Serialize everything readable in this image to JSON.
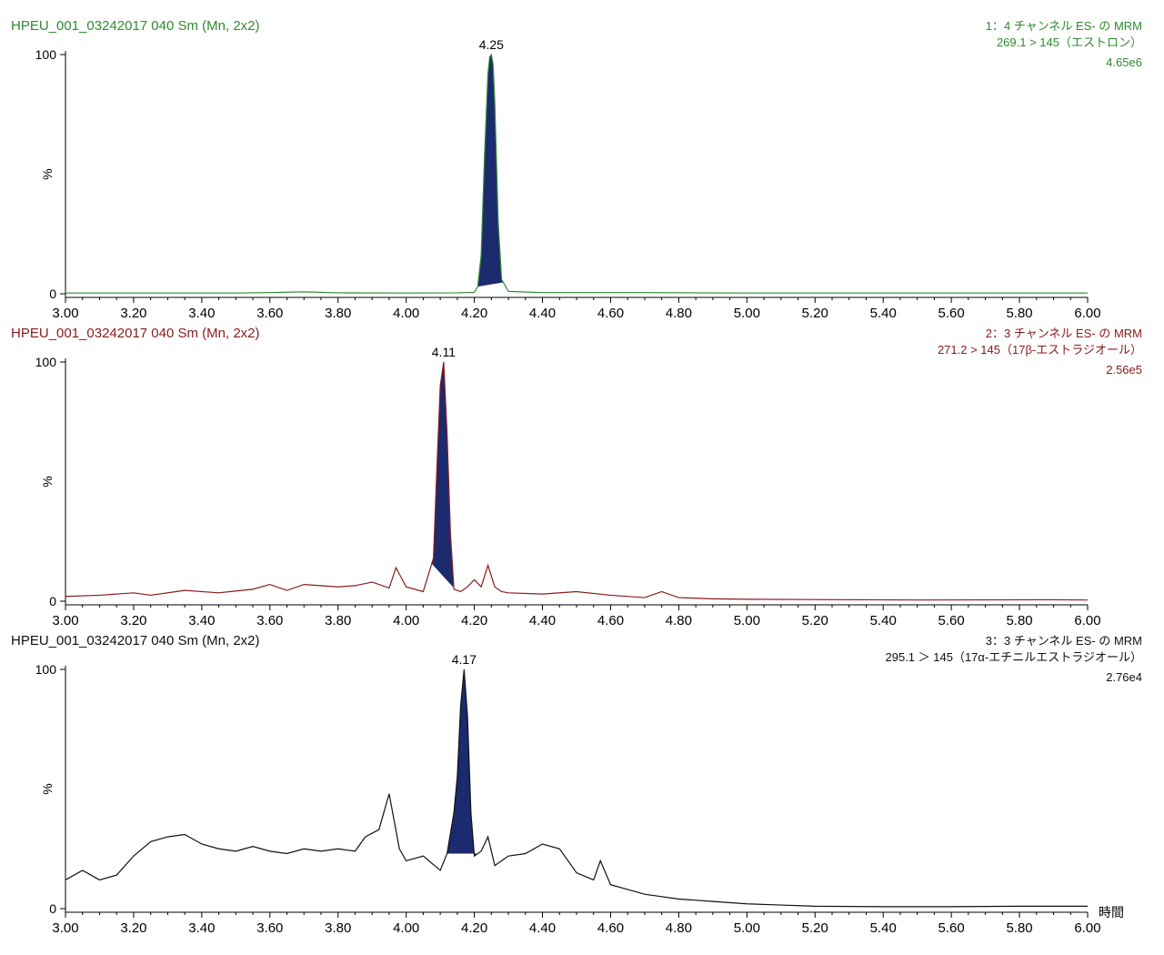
{
  "x_unit_label": "時間",
  "chart_data": [
    {
      "type": "line",
      "title": "HPEU_001_03242017 040 Sm (Mn, 2x2)",
      "channel": "1：4 チャンネル ES- の MRM",
      "transition": "269.1 > 145（エストロン）",
      "intensity": "4.65e6",
      "ylabel": "%",
      "color": "#2e8b2e",
      "fill_color": "#1c2a6e",
      "xlim": [
        3.0,
        6.0
      ],
      "ylim": [
        0,
        100
      ],
      "y_ticks": [
        "0",
        "100"
      ],
      "x_ticks": [
        "3.00",
        "3.20",
        "3.40",
        "3.60",
        "3.80",
        "4.00",
        "4.20",
        "4.40",
        "4.60",
        "4.80",
        "5.00",
        "5.20",
        "5.40",
        "5.60",
        "5.80",
        "6.00"
      ],
      "peak_label": "4.25",
      "peak": {
        "rt": 4.25,
        "start": 4.21,
        "end": 4.285
      },
      "series": [
        {
          "x": [
            3.0,
            3.5,
            3.6,
            3.7,
            3.8,
            4.0,
            4.15,
            4.2,
            4.21,
            4.22,
            4.23,
            4.24,
            4.245,
            4.25,
            4.255,
            4.26,
            4.27,
            4.28,
            4.3,
            4.4,
            4.7,
            5.0,
            6.0
          ],
          "values": [
            0.3,
            0.3,
            0.5,
            0.8,
            0.4,
            0.3,
            0.4,
            0.6,
            3,
            16,
            58,
            92,
            99,
            100,
            96,
            80,
            30,
            6,
            1,
            0.5,
            0.5,
            0.3,
            0.3
          ]
        }
      ]
    },
    {
      "type": "line",
      "title": "HPEU_001_03242017 040 Sm (Mn, 2x2)",
      "channel": "2：3 チャンネル ES- の MRM",
      "transition": "271.2 > 145（17β-エストラジオール）",
      "intensity": "2.56e5",
      "ylabel": "%",
      "color": "#8b1a1a",
      "fill_color": "#1c2a6e",
      "xlim": [
        3.0,
        6.0
      ],
      "ylim": [
        0,
        100
      ],
      "y_ticks": [
        "0",
        "100"
      ],
      "x_ticks": [
        "3.00",
        "3.20",
        "3.40",
        "3.60",
        "3.80",
        "4.00",
        "4.20",
        "4.40",
        "4.60",
        "4.80",
        "5.00",
        "5.20",
        "5.40",
        "5.60",
        "5.80",
        "6.00"
      ],
      "peak_label": "4.11",
      "peak": {
        "rt": 4.11,
        "start": 4.075,
        "end": 4.145
      },
      "series": [
        {
          "x": [
            3.0,
            3.1,
            3.2,
            3.25,
            3.35,
            3.45,
            3.55,
            3.6,
            3.65,
            3.7,
            3.8,
            3.85,
            3.9,
            3.95,
            3.97,
            4.0,
            4.05,
            4.08,
            4.09,
            4.1,
            4.11,
            4.12,
            4.13,
            4.14,
            4.16,
            4.18,
            4.2,
            4.22,
            4.24,
            4.26,
            4.28,
            4.3,
            4.4,
            4.5,
            4.6,
            4.7,
            4.75,
            4.8,
            4.9,
            5.0,
            5.5,
            5.9,
            6.0
          ],
          "values": [
            2,
            2.5,
            3.5,
            2.5,
            4.5,
            3.5,
            5,
            7,
            4.5,
            7,
            6,
            6.5,
            8,
            5.5,
            14,
            6,
            4,
            18,
            55,
            90,
            100,
            70,
            28,
            5,
            4,
            6,
            9,
            6,
            15,
            6,
            4,
            3.5,
            3,
            4,
            2.5,
            1.5,
            4,
            1.5,
            1,
            0.8,
            0.5,
            0.6,
            0.5
          ]
        }
      ]
    },
    {
      "type": "line",
      "title": "HPEU_001_03242017 040 Sm (Mn, 2x2)",
      "channel": "3：3 チャンネル ES- の MRM",
      "transition": "295.1 ＞ 145（17α-エチニルエストラジオール）",
      "intensity": "2.76e4",
      "ylabel": "%",
      "color": "#111111",
      "fill_color": "#1c2a6e",
      "xlim": [
        3.0,
        6.0
      ],
      "ylim": [
        0,
        100
      ],
      "y_ticks": [
        "0",
        "100"
      ],
      "x_ticks": [
        "3.00",
        "3.20",
        "3.40",
        "3.60",
        "3.80",
        "4.00",
        "4.20",
        "4.40",
        "4.60",
        "4.80",
        "5.00",
        "5.20",
        "5.40",
        "5.60",
        "5.80",
        "6.00"
      ],
      "xlabel": "時間",
      "peak_label": "4.17",
      "peak": {
        "rt": 4.17,
        "start": 4.12,
        "end": 4.21
      },
      "series": [
        {
          "x": [
            3.0,
            3.05,
            3.1,
            3.15,
            3.2,
            3.25,
            3.3,
            3.35,
            3.4,
            3.45,
            3.5,
            3.55,
            3.6,
            3.65,
            3.7,
            3.75,
            3.8,
            3.85,
            3.88,
            3.92,
            3.95,
            3.98,
            4.0,
            4.05,
            4.1,
            4.12,
            4.14,
            4.15,
            4.16,
            4.17,
            4.18,
            4.19,
            4.2,
            4.22,
            4.24,
            4.26,
            4.3,
            4.35,
            4.4,
            4.45,
            4.5,
            4.55,
            4.57,
            4.6,
            4.65,
            4.7,
            4.8,
            4.9,
            5.0,
            5.1,
            5.2,
            5.4,
            5.6,
            5.8,
            6.0
          ],
          "values": [
            12,
            16,
            12,
            14,
            22,
            28,
            30,
            31,
            27,
            25,
            24,
            26,
            24,
            23,
            25,
            24,
            25,
            24,
            30,
            33,
            48,
            25,
            20,
            22,
            16,
            23,
            40,
            55,
            85,
            100,
            80,
            40,
            22,
            24,
            30,
            18,
            22,
            23,
            27,
            25,
            15,
            12,
            20,
            10,
            8,
            6,
            4,
            3,
            2,
            1.5,
            1,
            0.8,
            0.8,
            1,
            1
          ]
        }
      ]
    }
  ]
}
